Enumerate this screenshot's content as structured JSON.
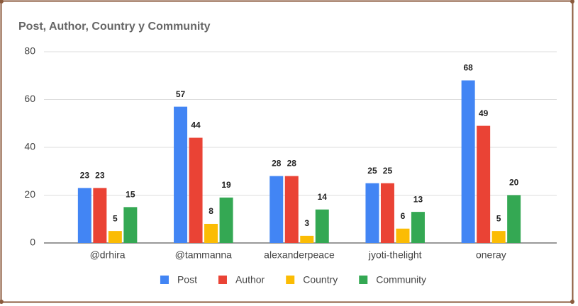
{
  "chart_data": {
    "type": "bar",
    "title": "Post, Author, Country y Community",
    "categories": [
      "@drhira",
      "@tammanna",
      "alexanderpeace",
      "jyoti-thelight",
      "oneray"
    ],
    "series": [
      {
        "name": "Post",
        "color": "#4285f4",
        "values": [
          23,
          57,
          28,
          25,
          68
        ]
      },
      {
        "name": "Author",
        "color": "#ea4335",
        "values": [
          23,
          44,
          28,
          25,
          49
        ]
      },
      {
        "name": "Country",
        "color": "#fbbc04",
        "values": [
          5,
          8,
          3,
          6,
          5
        ]
      },
      {
        "name": "Community",
        "color": "#34a853",
        "values": [
          15,
          19,
          14,
          13,
          20
        ]
      }
    ],
    "ylim": [
      0,
      80
    ],
    "yticks": [
      0,
      20,
      40,
      60,
      80
    ],
    "grid": true,
    "legend": "bottom"
  }
}
